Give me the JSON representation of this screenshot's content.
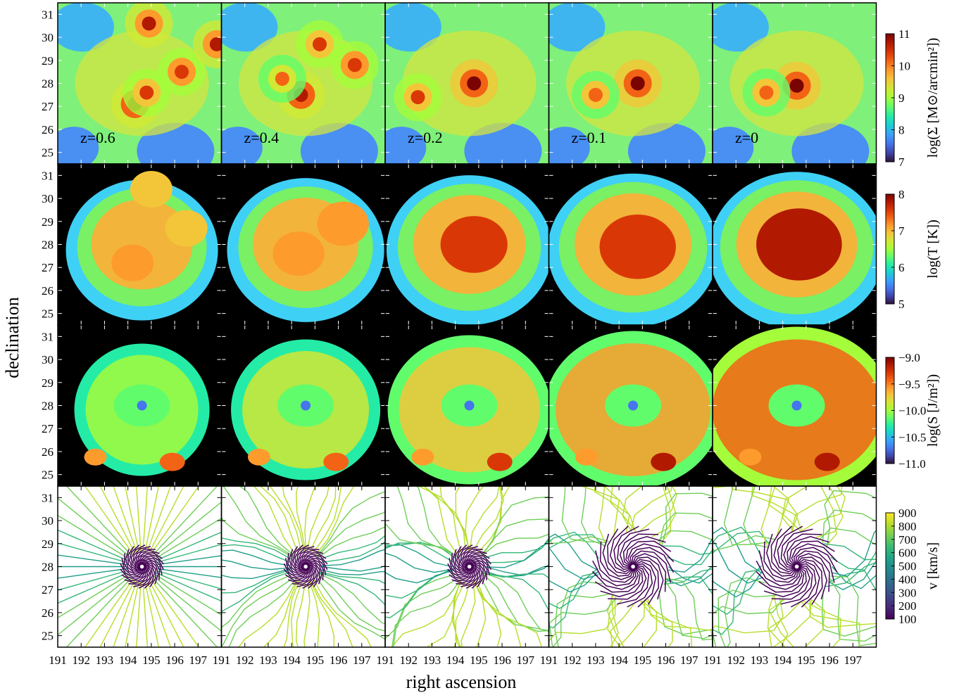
{
  "figure": {
    "xlabel": "right ascension",
    "ylabel": "declination"
  },
  "chart_data": {
    "type": "heatmap",
    "layout": "4 rows x 5 columns of sky maps",
    "columns": [
      {
        "redshift": 0.6,
        "label": "z=0.6"
      },
      {
        "redshift": 0.4,
        "label": "z=0.4"
      },
      {
        "redshift": 0.2,
        "label": "z=0.2"
      },
      {
        "redshift": 0.1,
        "label": "z=0.1"
      },
      {
        "redshift": 0.0,
        "label": "z=0"
      }
    ],
    "x_axis": {
      "label": "right ascension",
      "range": [
        191,
        198
      ],
      "ticks": [
        191,
        192,
        193,
        194,
        195,
        196,
        197
      ],
      "tick_labels": [
        "191",
        "192",
        "193",
        "194",
        "195",
        "196",
        "197"
      ]
    },
    "y_axis": {
      "label": "declination",
      "range": [
        24.5,
        31.5
      ],
      "ticks": [
        25,
        26,
        27,
        28,
        29,
        30,
        31
      ],
      "tick_labels": [
        "25",
        "26",
        "27",
        "28",
        "29",
        "30",
        "31"
      ]
    },
    "rows": [
      {
        "quantity": "surface mass density",
        "colorbar_label": "log(Σ [M⊙/arcmin²])",
        "colormap": "turbo",
        "color_range": [
          7,
          11
        ],
        "colorbar_ticks": [
          "7",
          "8",
          "9",
          "10",
          "11"
        ],
        "peaks": [
          [
            {
              "ra": 194.3,
              "dec": 27.1,
              "level": 10.8
            },
            {
              "ra": 194.9,
              "dec": 30.6,
              "level": 10.6
            },
            {
              "ra": 196.3,
              "dec": 28.5,
              "level": 10.5
            },
            {
              "ra": 197.8,
              "dec": 29.7,
              "level": 10.7
            },
            {
              "ra": 194.8,
              "dec": 27.6,
              "level": 10.4
            }
          ],
          [
            {
              "ra": 194.4,
              "dec": 27.5,
              "level": 10.8
            },
            {
              "ra": 195.2,
              "dec": 29.7,
              "level": 10.4
            },
            {
              "ra": 196.7,
              "dec": 28.8,
              "level": 10.5
            },
            {
              "ra": 193.6,
              "dec": 28.2,
              "level": 10.0
            }
          ],
          [
            {
              "ra": 194.8,
              "dec": 28.0,
              "level": 10.9
            },
            {
              "ra": 192.4,
              "dec": 27.4,
              "level": 10.3
            }
          ],
          [
            {
              "ra": 194.8,
              "dec": 28.0,
              "level": 11.0
            },
            {
              "ra": 193.0,
              "dec": 27.5,
              "level": 10.2
            }
          ],
          [
            {
              "ra": 194.6,
              "dec": 27.9,
              "level": 11.0
            },
            {
              "ra": 193.3,
              "dec": 27.6,
              "level": 10.2
            }
          ]
        ]
      },
      {
        "quantity": "temperature",
        "colorbar_label": "log(T [K])",
        "colormap": "turbo",
        "color_range": [
          5,
          8
        ],
        "colorbar_ticks": [
          "5",
          "6",
          "7",
          "8"
        ],
        "peaks": [
          [
            {
              "ra": 194.2,
              "dec": 27.2,
              "level": 7.2
            },
            {
              "ra": 195.0,
              "dec": 30.4,
              "level": 6.9
            },
            {
              "ra": 196.5,
              "dec": 28.7,
              "level": 7.0
            }
          ],
          [
            {
              "ra": 194.3,
              "dec": 27.6,
              "level": 7.2
            },
            {
              "ra": 196.2,
              "dec": 28.9,
              "level": 7.1
            }
          ],
          [
            {
              "ra": 194.8,
              "dec": 28.0,
              "level": 7.5
            }
          ],
          [
            {
              "ra": 194.8,
              "dec": 27.9,
              "level": 7.6
            }
          ],
          [
            {
              "ra": 194.7,
              "dec": 28.0,
              "level": 7.8
            }
          ]
        ]
      },
      {
        "quantity": "Sunyaev-Zeldovich signal",
        "colorbar_label": "log(S [J/m²])",
        "colormap": "turbo",
        "color_range": [
          -11.0,
          -9.0
        ],
        "colorbar_ticks": [
          "−11.0",
          "−10.5",
          "−10.0",
          "−9.5",
          "−9.0"
        ]
      },
      {
        "quantity": "velocity",
        "colorbar_label": "v [km/s]",
        "colormap": "viridis",
        "color_range": [
          100,
          900
        ],
        "colorbar_ticks": [
          "100",
          "200",
          "300",
          "400",
          "500",
          "600",
          "700",
          "800",
          "900"
        ],
        "render": "streamlines",
        "center": {
          "ra": 194.6,
          "dec": 28.0
        }
      }
    ]
  }
}
